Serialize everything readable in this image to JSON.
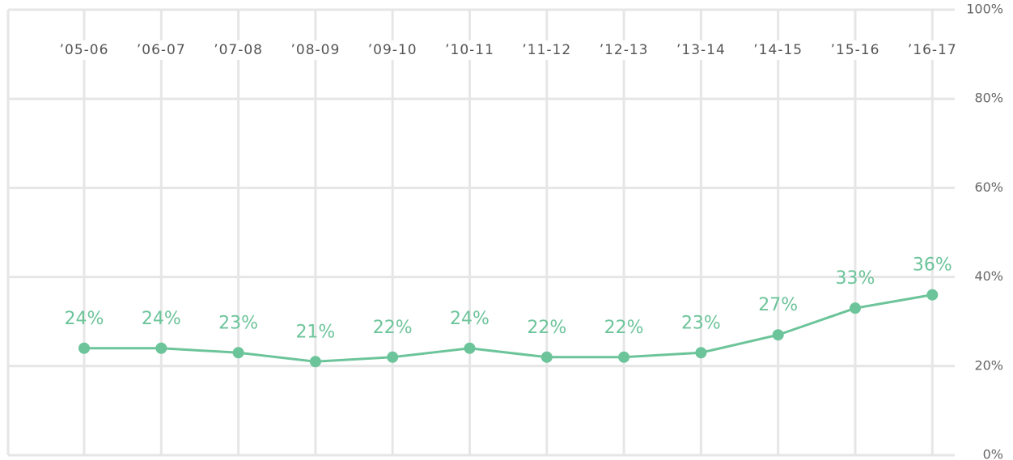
{
  "chart_data": {
    "type": "line",
    "categories": [
      "’05-06",
      "’06-07",
      "’07-08",
      "’08-09",
      "’09-10",
      "’10-11",
      "’11-12",
      "’12-13",
      "’13-14",
      "’14-15",
      "’15-16",
      "’16-17"
    ],
    "series": [
      {
        "color": "#6cc49a",
        "values": [
          24,
          24,
          23,
          21,
          22,
          24,
          22,
          22,
          23,
          27,
          33,
          36
        ],
        "value_labels": [
          "24%",
          "24%",
          "23%",
          "21%",
          "22%",
          "24%",
          "22%",
          "22%",
          "23%",
          "27%",
          "33%",
          "36%"
        ]
      }
    ],
    "ylim": [
      0,
      100
    ],
    "yticks": [
      {
        "value": 0,
        "label": "0%"
      },
      {
        "value": 20,
        "label": "20%"
      },
      {
        "value": 40,
        "label": "40%"
      },
      {
        "value": 60,
        "label": "60%"
      },
      {
        "value": 80,
        "label": "80%"
      },
      {
        "value": 100,
        "label": "100%"
      }
    ],
    "grid": true
  }
}
